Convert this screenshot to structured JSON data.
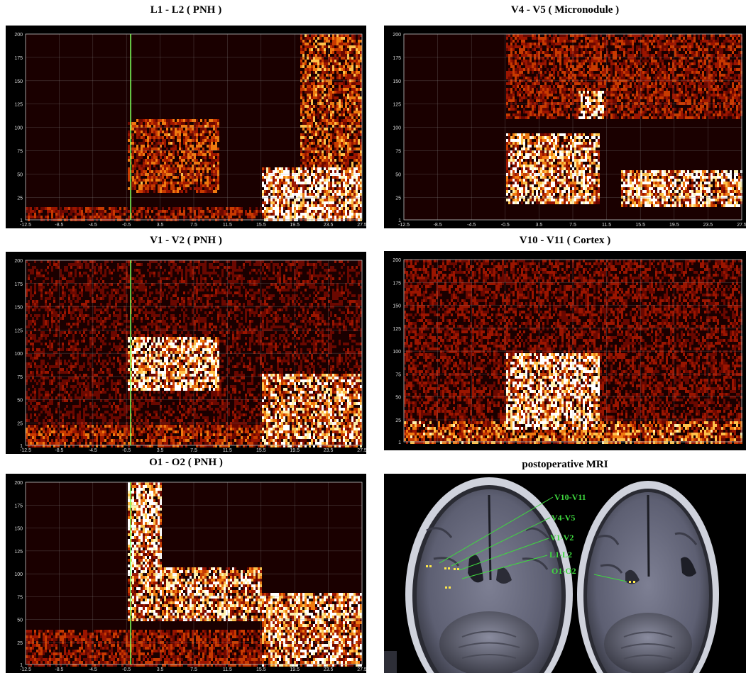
{
  "figure": {
    "panels": [
      {
        "title": "L1 - L2 ( PNH )"
      },
      {
        "title": "V4 - V5 ( Micronodule )"
      },
      {
        "title": "V1 - V2 ( PNH )"
      },
      {
        "title": "V10 - V11 ( Cortex )"
      },
      {
        "title": "O1 - O2 ( PNH )"
      }
    ],
    "mri": {
      "title": "postoperative MRI",
      "labels": [
        "V10-V11",
        "V4-V5",
        "V1-V2",
        "L1-L2",
        "O1-O2"
      ],
      "label_color": "#3fd93f"
    }
  },
  "chart_data": [
    {
      "type": "heatmap",
      "title": "L1 - L2 ( PNH )",
      "xlabel": "",
      "ylabel": "",
      "x_ticks": [
        "-12.5",
        "-8.5",
        "-4.5",
        "-0.5",
        "3.5",
        "7.5",
        "11.5",
        "15.5",
        "19.5",
        "23.5",
        "27.5"
      ],
      "y_ticks": [
        "1",
        "25",
        "50",
        "75",
        "100",
        "125",
        "150",
        "175",
        "200"
      ],
      "xlim": [
        -12.5,
        27.5
      ],
      "ylim": [
        1,
        200
      ],
      "grid": true,
      "marker_x": 0
    },
    {
      "type": "heatmap",
      "title": "V4 - V5 ( Micronodule )",
      "xlabel": "",
      "ylabel": "",
      "x_ticks": [
        "-12.5",
        "-8.5",
        "-4.5",
        "-0.5",
        "3.5",
        "7.5",
        "11.5",
        "15.5",
        "19.5",
        "23.5",
        "27.5"
      ],
      "y_ticks": [
        "1",
        "25",
        "50",
        "75",
        "100",
        "125",
        "150",
        "175",
        "200"
      ],
      "xlim": [
        -12.5,
        27.5
      ],
      "ylim": [
        1,
        200
      ],
      "grid": true
    },
    {
      "type": "heatmap",
      "title": "V1 - V2 ( PNH )",
      "xlabel": "",
      "ylabel": "",
      "x_ticks": [
        "-12.5",
        "-8.5",
        "-4.5",
        "-0.5",
        "3.5",
        "7.5",
        "11.5",
        "15.5",
        "19.5",
        "23.5",
        "27.5"
      ],
      "y_ticks": [
        "1",
        "25",
        "50",
        "75",
        "100",
        "125",
        "150",
        "175",
        "200"
      ],
      "xlim": [
        -12.5,
        27.5
      ],
      "ylim": [
        1,
        200
      ],
      "grid": true,
      "marker_x": 0
    },
    {
      "type": "heatmap",
      "title": "V10 - V11 ( Cortex )",
      "xlabel": "",
      "ylabel": "",
      "x_ticks": [],
      "y_ticks": [
        "1",
        "25",
        "50",
        "75",
        "100",
        "125",
        "150",
        "175",
        "200"
      ],
      "xlim": [
        -12.5,
        27.5
      ],
      "ylim": [
        1,
        200
      ],
      "grid": true
    },
    {
      "type": "heatmap",
      "title": "O1 - O2 ( PNH )",
      "xlabel": "",
      "ylabel": "",
      "x_ticks": [
        "-12.5",
        "-8.5",
        "-4.5",
        "-0.5",
        "3.5",
        "7.5",
        "11.5",
        "15.5",
        "19.5",
        "23.5",
        "27.5"
      ],
      "y_ticks": [
        "1",
        "25",
        "50",
        "75",
        "100",
        "125",
        "150",
        "175",
        "200"
      ],
      "xlim": [
        -12.5,
        27.5
      ],
      "ylim": [
        1,
        200
      ],
      "grid": true,
      "marker_x": 0
    }
  ]
}
